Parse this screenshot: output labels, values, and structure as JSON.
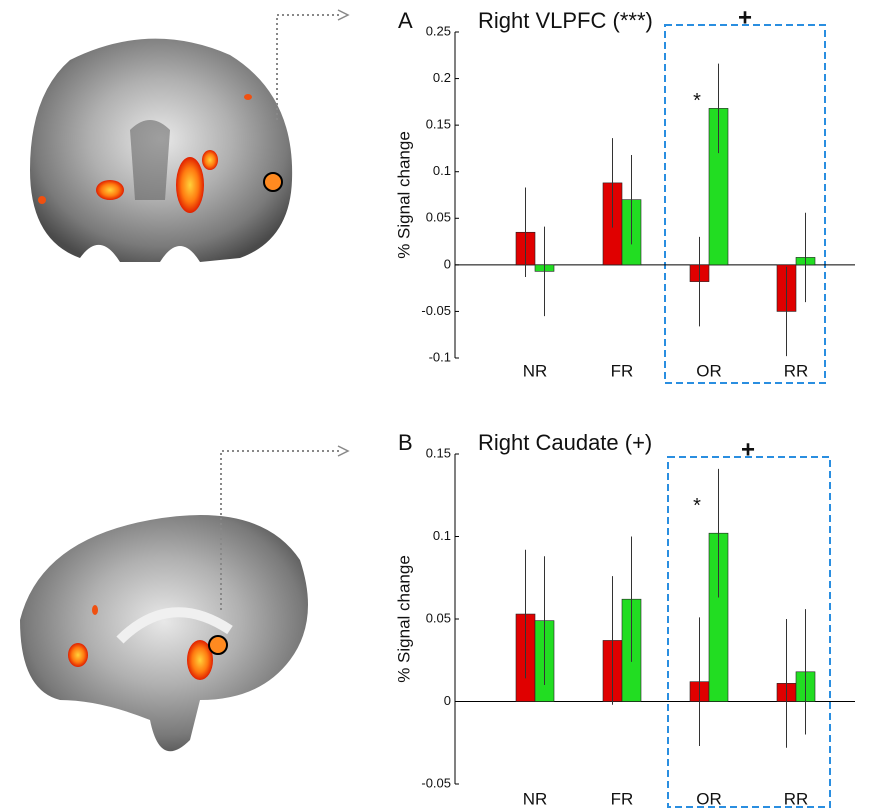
{
  "chart_data": [
    {
      "type": "bar",
      "panel": "A",
      "title": "Right VLPFC (***)",
      "ylabel": "% Signal change",
      "categories": [
        "NR",
        "FR",
        "OR",
        "RR"
      ],
      "series": [
        {
          "color": "#e00000",
          "values": [
            0.035,
            0.088,
            -0.018,
            -0.05
          ],
          "errors": [
            0.048,
            0.048,
            0.048,
            0.048
          ]
        },
        {
          "color": "#22dd22",
          "values": [
            -0.007,
            0.07,
            0.168,
            0.008
          ],
          "errors": [
            0.048,
            0.048,
            0.048,
            0.048
          ]
        }
      ],
      "ylim": [
        -0.1,
        0.25
      ],
      "yticks": [
        -0.1,
        -0.05,
        0,
        0.05,
        0.1,
        0.15,
        0.2,
        0.25
      ],
      "annotations": [
        "*",
        "+"
      ]
    },
    {
      "type": "bar",
      "panel": "B",
      "title": "Right Caudate (+)",
      "ylabel": "% Signal change",
      "categories": [
        "NR",
        "FR",
        "OR",
        "RR"
      ],
      "series": [
        {
          "color": "#e00000",
          "values": [
            0.053,
            0.037,
            0.012,
            0.011
          ],
          "errors": [
            0.039,
            0.039,
            0.039,
            0.039
          ]
        },
        {
          "color": "#22dd22",
          "values": [
            0.049,
            0.062,
            0.102,
            0.018
          ],
          "errors": [
            0.039,
            0.038,
            0.039,
            0.038
          ]
        }
      ],
      "ylim": [
        -0.05,
        0.15
      ],
      "yticks": [
        -0.05,
        0,
        0.05,
        0.1,
        0.15
      ],
      "annotations": [
        "*",
        "+"
      ]
    }
  ]
}
